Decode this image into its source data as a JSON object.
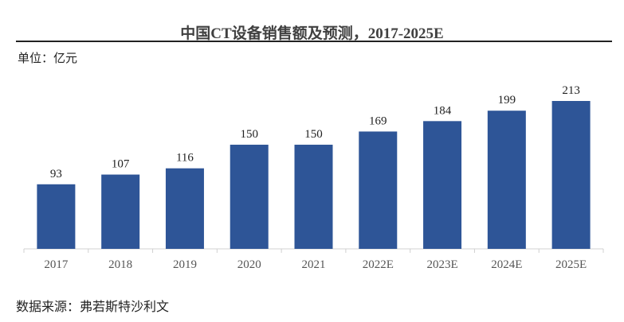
{
  "chart_data": {
    "type": "bar",
    "title": "中国CT设备销售额及预测，2017-2025E",
    "unit_label": "单位：亿元",
    "source": "数据来源：弗若斯特沙利文",
    "categories": [
      "2017",
      "2018",
      "2019",
      "2020",
      "2021",
      "2022E",
      "2023E",
      "2024E",
      "2025E"
    ],
    "values": [
      93,
      107,
      116,
      150,
      150,
      169,
      184,
      199,
      213
    ],
    "ylim": [
      0,
      213
    ],
    "grid": false,
    "bar_color": "#2E5597"
  }
}
